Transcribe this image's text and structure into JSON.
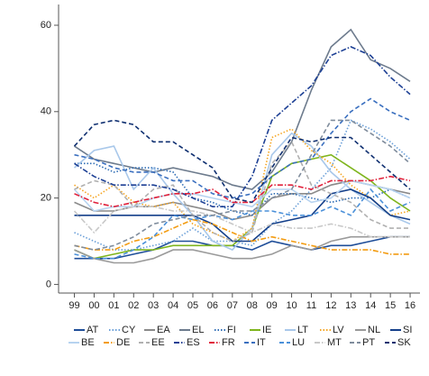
{
  "chart_data": {
    "type": "line",
    "xlim": [
      1998.2,
      2016.5
    ],
    "xticks": [
      {
        "value": 1999,
        "label": "99"
      },
      {
        "value": 2000,
        "label": "00"
      },
      {
        "value": 2001,
        "label": "01"
      },
      {
        "value": 2002,
        "label": "02"
      },
      {
        "value": 2003,
        "label": "03"
      },
      {
        "value": 2004,
        "label": "04"
      },
      {
        "value": 2005,
        "label": "05"
      },
      {
        "value": 2006,
        "label": "06"
      },
      {
        "value": 2007,
        "label": "07"
      },
      {
        "value": 2008,
        "label": "08"
      },
      {
        "value": 2009,
        "label": "09"
      },
      {
        "value": 2010,
        "label": "10"
      },
      {
        "value": 2011,
        "label": "11"
      },
      {
        "value": 2012,
        "label": "12"
      },
      {
        "value": 2013,
        "label": "13"
      },
      {
        "value": 2014,
        "label": "14"
      },
      {
        "value": 2015,
        "label": "15"
      },
      {
        "value": 2016,
        "label": "16"
      }
    ],
    "ylim": [
      -2,
      64.8
    ],
    "yticks": [
      0,
      20,
      40,
      60
    ],
    "x": [
      1999,
      2000,
      2001,
      2002,
      2003,
      2004,
      2005,
      2006,
      2007,
      2008,
      2009,
      2010,
      2011,
      2012,
      2013,
      2014,
      2015,
      2016
    ],
    "series": [
      {
        "name": "AT",
        "color": "#1f4e99",
        "style": "solid",
        "values": [
          6,
          6,
          6,
          7,
          8,
          10,
          10,
          9,
          9,
          8,
          10,
          9,
          8,
          9,
          9,
          10,
          11,
          11
        ]
      },
      {
        "name": "CY",
        "color": "#6a9fd8",
        "style": "dot",
        "values": [
          12,
          10,
          8,
          8,
          9,
          10,
          13,
          10,
          10,
          9,
          14,
          17,
          22,
          27,
          38,
          36,
          33,
          29
        ]
      },
      {
        "name": "EA",
        "color": "#8a8a8a",
        "style": "solid",
        "values": [
          19,
          17,
          17,
          18,
          18,
          19,
          18,
          17,
          15,
          16,
          20,
          21,
          21,
          23,
          24,
          23,
          22,
          21
        ]
      },
      {
        "name": "EL",
        "color": "#6d7b8d",
        "style": "solid",
        "values": [
          32,
          29,
          28,
          27,
          26,
          27,
          26,
          25,
          23,
          22,
          26,
          33,
          45,
          55,
          59,
          52,
          50,
          47
        ]
      },
      {
        "name": "FI",
        "color": "#2f6db5",
        "style": "dot",
        "values": [
          28,
          28,
          26,
          27,
          27,
          26,
          20,
          19,
          17,
          16,
          21,
          21,
          20,
          19,
          20,
          20,
          22,
          20
        ]
      },
      {
        "name": "IE",
        "color": "#7fb51e",
        "style": "solid",
        "values": [
          8,
          6,
          7,
          8,
          8,
          9,
          9,
          9,
          9,
          13,
          25,
          28,
          29,
          30,
          27,
          24,
          20,
          17
        ]
      },
      {
        "name": "LT",
        "color": "#a9c8ea",
        "style": "solid",
        "values": [
          27,
          31,
          32,
          22,
          27,
          21,
          16,
          10,
          8,
          13,
          30,
          35,
          32,
          26,
          22,
          19,
          16,
          14
        ]
      },
      {
        "name": "LV",
        "color": "#f5a623",
        "style": "dot",
        "values": [
          23,
          20,
          23,
          19,
          18,
          19,
          14,
          12,
          10,
          13,
          34,
          36,
          31,
          28,
          23,
          20,
          16,
          17
        ]
      },
      {
        "name": "NL",
        "color": "#9a9a9a",
        "style": "solid",
        "values": [
          8,
          6,
          5,
          5,
          6,
          8,
          8,
          7,
          6,
          6,
          7,
          9,
          8,
          10,
          11,
          11,
          11,
          11
        ]
      },
      {
        "name": "SI",
        "color": "#143f8a",
        "style": "solid",
        "values": [
          16,
          16,
          16,
          16,
          16,
          16,
          16,
          14,
          10,
          10,
          14,
          15,
          16,
          21,
          22,
          20,
          16,
          15
        ]
      },
      {
        "name": "BE",
        "color": "#b7d3f0",
        "style": "solid",
        "values": [
          22,
          17,
          18,
          18,
          20,
          21,
          21,
          20,
          19,
          18,
          22,
          22,
          19,
          20,
          24,
          23,
          22,
          20
        ]
      },
      {
        "name": "DE",
        "color": "#f39c12",
        "style": "dashdot",
        "values": [
          9,
          8,
          8,
          10,
          11,
          13,
          15,
          14,
          12,
          10,
          11,
          10,
          9,
          8,
          8,
          8,
          7,
          7
        ]
      },
      {
        "name": "EE",
        "color": "#b0b0b0",
        "style": "dash",
        "values": [
          22,
          24,
          23,
          18,
          22,
          23,
          16,
          12,
          10,
          12,
          28,
          33,
          23,
          21,
          19,
          15,
          13,
          13
        ]
      },
      {
        "name": "ES",
        "color": "#1c3f94",
        "style": "dashdot",
        "values": [
          28,
          25,
          23,
          23,
          23,
          22,
          20,
          18,
          18,
          25,
          38,
          42,
          46,
          53,
          55,
          53,
          48,
          44
        ]
      },
      {
        "name": "FR",
        "color": "#e0203a",
        "style": "dashdot",
        "values": [
          21,
          19,
          18,
          19,
          20,
          21,
          21,
          22,
          19,
          19,
          23,
          23,
          22,
          24,
          24,
          24,
          25,
          24
        ]
      },
      {
        "name": "IT",
        "color": "#3a6fbf",
        "style": "dash",
        "values": [
          30,
          29,
          27,
          26,
          26,
          24,
          24,
          21,
          20,
          21,
          25,
          28,
          29,
          35,
          40,
          43,
          40,
          38
        ]
      },
      {
        "name": "LU",
        "color": "#4a90d9",
        "style": "dash",
        "values": [
          7,
          6,
          6,
          8,
          11,
          16,
          15,
          16,
          15,
          17,
          17,
          16,
          16,
          18,
          16,
          22,
          17,
          19
        ]
      },
      {
        "name": "MT",
        "color": "#c8c8c8",
        "style": "dashdot",
        "values": [
          17,
          12,
          17,
          18,
          18,
          17,
          17,
          16,
          14,
          12,
          14,
          13,
          13,
          14,
          13,
          11,
          11,
          11
        ]
      },
      {
        "name": "PT",
        "color": "#7f8c9c",
        "style": "dash",
        "values": [
          9,
          8,
          9,
          11,
          14,
          15,
          16,
          16,
          17,
          17,
          20,
          22,
          30,
          38,
          38,
          35,
          32,
          28
        ]
      },
      {
        "name": "SK",
        "color": "#0f2f70",
        "style": "dash",
        "values": [
          32,
          37,
          38,
          37,
          33,
          33,
          30,
          27,
          20,
          19,
          27,
          34,
          33,
          34,
          34,
          30,
          26,
          22
        ]
      }
    ]
  }
}
